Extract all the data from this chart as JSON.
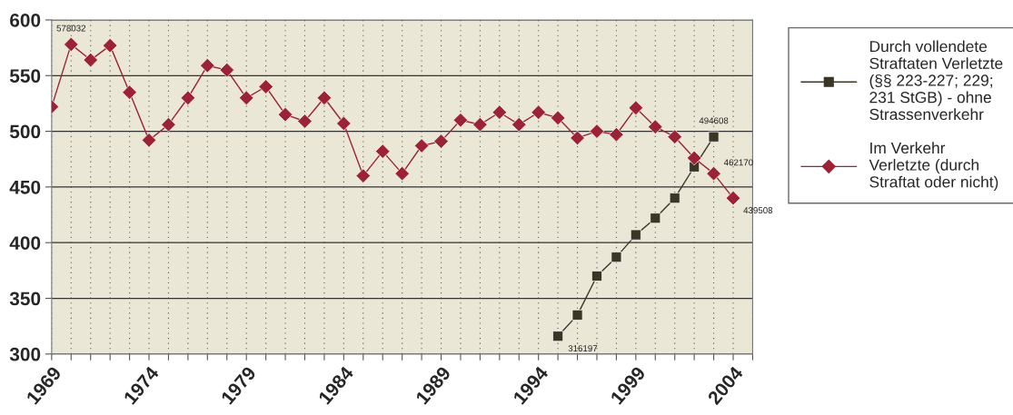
{
  "chart_data": {
    "type": "line",
    "xlim": [
      1969,
      2005
    ],
    "xticks": [
      1969,
      {
        "value": 1970,
        "label": null
      },
      {
        "value": 1971,
        "label": null
      },
      {
        "value": 1972,
        "label": null
      },
      {
        "value": 1973,
        "label": null
      },
      1974,
      {
        "value": 1975,
        "label": null
      },
      {
        "value": 1976,
        "label": null
      },
      {
        "value": 1977,
        "label": null
      },
      {
        "value": 1978,
        "label": null
      },
      1979,
      {
        "value": 1980,
        "label": null
      },
      {
        "value": 1981,
        "label": null
      },
      {
        "value": 1982,
        "label": null
      },
      {
        "value": 1983,
        "label": null
      },
      1984,
      {
        "value": 1985,
        "label": null
      },
      {
        "value": 1986,
        "label": null
      },
      {
        "value": 1987,
        "label": null
      },
      {
        "value": 1988,
        "label": null
      },
      1989,
      {
        "value": 1990,
        "label": null
      },
      {
        "value": 1991,
        "label": null
      },
      {
        "value": 1992,
        "label": null
      },
      {
        "value": 1993,
        "label": null
      },
      1994,
      {
        "value": 1995,
        "label": null
      },
      {
        "value": 1996,
        "label": null
      },
      {
        "value": 1997,
        "label": null
      },
      {
        "value": 1998,
        "label": null
      },
      1999,
      {
        "value": 2000,
        "label": null
      },
      {
        "value": 2001,
        "label": null
      },
      {
        "value": 2002,
        "label": null
      },
      {
        "value": 2003,
        "label": null
      },
      2004,
      {
        "value": 2005,
        "label": null
      }
    ],
    "ylim": [
      300,
      600
    ],
    "yticks": [
      300,
      350,
      400,
      450,
      500,
      550,
      600
    ],
    "grid": true,
    "legend": "right",
    "series": [
      {
        "name": "Durch vollendete\nStraftaten Verletzte\n(§§ 223-227; 229;\n231 StGB) - ohne\nStrassenverkehr",
        "color": "#3b3526",
        "marker": "square",
        "x": [
          1995,
          1996,
          1997,
          1998,
          1999,
          2000,
          2001,
          2002,
          2003
        ],
        "values": [
          316,
          335,
          370,
          387,
          407,
          422,
          440,
          468,
          495
        ]
      },
      {
        "name": "Im Verkehr\nVerletzte (durch\nStraftat oder nicht)",
        "color": "#9b2335",
        "marker": "diamond",
        "x": [
          1969,
          1970,
          1971,
          1972,
          1973,
          1974,
          1975,
          1976,
          1977,
          1978,
          1979,
          1980,
          1981,
          1982,
          1983,
          1984,
          1985,
          1986,
          1987,
          1988,
          1989,
          1990,
          1991,
          1992,
          1993,
          1994,
          1995,
          1996,
          1997,
          1998,
          1999,
          2000,
          2001,
          2002,
          2003,
          2004
        ],
        "values": [
          522,
          578,
          564,
          577,
          535,
          492,
          506,
          530,
          559,
          555,
          530,
          540,
          515,
          509,
          530,
          507,
          460,
          482,
          462,
          487,
          491,
          510,
          506,
          517,
          506,
          517,
          512,
          494,
          500,
          497,
          521,
          504,
          495,
          476,
          462,
          440
        ]
      }
    ],
    "annotations": [
      {
        "text": "578032",
        "x": 1970,
        "y": 578
      },
      {
        "text": "316197",
        "x": 1995,
        "y": 316
      },
      {
        "text": "494608",
        "x": 2003,
        "y": 495
      },
      {
        "text": "462170",
        "x": 2003,
        "y": 462
      },
      {
        "text": "439508",
        "x": 2004,
        "y": 440
      }
    ]
  }
}
